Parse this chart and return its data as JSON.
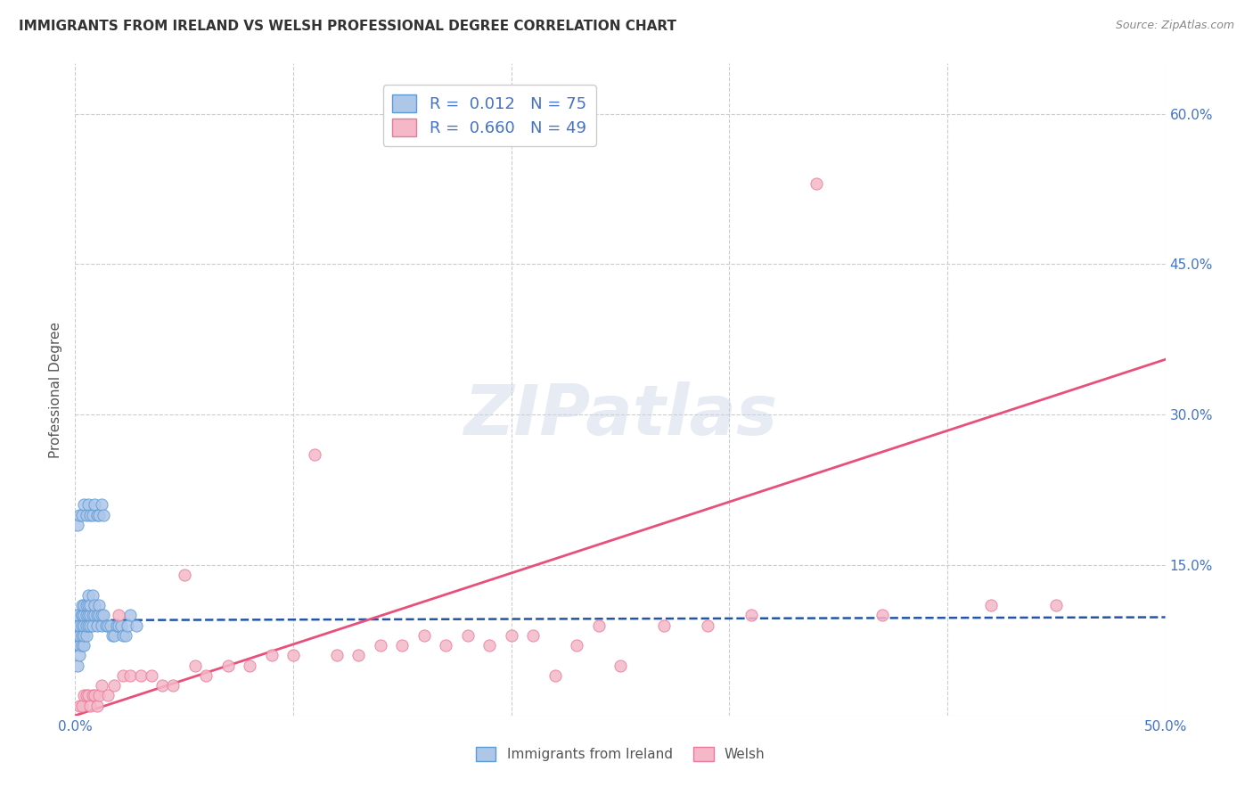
{
  "title": "IMMIGRANTS FROM IRELAND VS WELSH PROFESSIONAL DEGREE CORRELATION CHART",
  "source": "Source: ZipAtlas.com",
  "ylabel": "Professional Degree",
  "xlim": [
    0.0,
    0.5
  ],
  "ylim": [
    0.0,
    0.65
  ],
  "ytick_values": [
    0.0,
    0.15,
    0.3,
    0.45,
    0.6
  ],
  "xtick_values": [
    0.0,
    0.5
  ],
  "series1_color_face": "#aec6e8",
  "series1_color_edge": "#5b9bd5",
  "series2_color_face": "#f4b8c8",
  "series2_color_edge": "#e8799a",
  "trend1_color": "#2255aa",
  "trend2_color": "#e8507a",
  "background_color": "#ffffff",
  "grid_color": "#cccccc",
  "watermark": "ZIPatlas",
  "watermark_color": "#c8d4e8",
  "title_color": "#333333",
  "source_color": "#888888",
  "axis_label_color": "#4472c4",
  "legend_label1": "R =  0.012   N = 75",
  "legend_label2": "R =  0.660   N = 49",
  "bottom_label1": "Immigrants from Ireland",
  "bottom_label2": "Welsh",
  "trend1_x": [
    0.0,
    0.5
  ],
  "trend1_y": [
    0.095,
    0.098
  ],
  "trend2_x": [
    0.0,
    0.5
  ],
  "trend2_y": [
    0.0,
    0.355
  ],
  "series1_x": [
    0.001,
    0.001,
    0.001,
    0.001,
    0.001,
    0.001,
    0.001,
    0.001,
    0.002,
    0.002,
    0.002,
    0.002,
    0.002,
    0.002,
    0.002,
    0.003,
    0.003,
    0.003,
    0.003,
    0.003,
    0.003,
    0.004,
    0.004,
    0.004,
    0.004,
    0.004,
    0.005,
    0.005,
    0.005,
    0.005,
    0.006,
    0.006,
    0.006,
    0.006,
    0.007,
    0.007,
    0.007,
    0.008,
    0.008,
    0.008,
    0.009,
    0.009,
    0.01,
    0.01,
    0.011,
    0.011,
    0.012,
    0.012,
    0.013,
    0.014,
    0.015,
    0.016,
    0.017,
    0.018,
    0.019,
    0.02,
    0.021,
    0.022,
    0.023,
    0.024,
    0.001,
    0.002,
    0.003,
    0.004,
    0.005,
    0.006,
    0.007,
    0.008,
    0.009,
    0.01,
    0.011,
    0.012,
    0.013,
    0.025,
    0.028
  ],
  "series1_y": [
    0.07,
    0.08,
    0.08,
    0.09,
    0.09,
    0.1,
    0.1,
    0.05,
    0.07,
    0.07,
    0.08,
    0.08,
    0.09,
    0.09,
    0.06,
    0.07,
    0.08,
    0.09,
    0.1,
    0.1,
    0.11,
    0.07,
    0.08,
    0.09,
    0.1,
    0.11,
    0.08,
    0.09,
    0.1,
    0.11,
    0.09,
    0.1,
    0.11,
    0.12,
    0.09,
    0.1,
    0.11,
    0.09,
    0.1,
    0.12,
    0.1,
    0.11,
    0.09,
    0.1,
    0.1,
    0.11,
    0.09,
    0.1,
    0.1,
    0.09,
    0.09,
    0.09,
    0.08,
    0.08,
    0.09,
    0.09,
    0.09,
    0.08,
    0.08,
    0.09,
    0.19,
    0.2,
    0.2,
    0.21,
    0.2,
    0.21,
    0.2,
    0.2,
    0.21,
    0.2,
    0.2,
    0.21,
    0.2,
    0.1,
    0.09
  ],
  "series2_x": [
    0.002,
    0.003,
    0.004,
    0.005,
    0.006,
    0.007,
    0.008,
    0.009,
    0.01,
    0.011,
    0.012,
    0.015,
    0.018,
    0.02,
    0.022,
    0.025,
    0.03,
    0.035,
    0.04,
    0.045,
    0.05,
    0.055,
    0.06,
    0.07,
    0.08,
    0.09,
    0.1,
    0.11,
    0.12,
    0.13,
    0.14,
    0.15,
    0.16,
    0.17,
    0.18,
    0.19,
    0.2,
    0.21,
    0.22,
    0.23,
    0.24,
    0.25,
    0.27,
    0.29,
    0.31,
    0.34,
    0.37,
    0.42,
    0.45
  ],
  "series2_y": [
    0.01,
    0.01,
    0.02,
    0.02,
    0.02,
    0.01,
    0.02,
    0.02,
    0.01,
    0.02,
    0.03,
    0.02,
    0.03,
    0.1,
    0.04,
    0.04,
    0.04,
    0.04,
    0.03,
    0.03,
    0.14,
    0.05,
    0.04,
    0.05,
    0.05,
    0.06,
    0.06,
    0.26,
    0.06,
    0.06,
    0.07,
    0.07,
    0.08,
    0.07,
    0.08,
    0.07,
    0.08,
    0.08,
    0.04,
    0.07,
    0.09,
    0.05,
    0.09,
    0.09,
    0.1,
    0.53,
    0.1,
    0.11,
    0.11
  ]
}
